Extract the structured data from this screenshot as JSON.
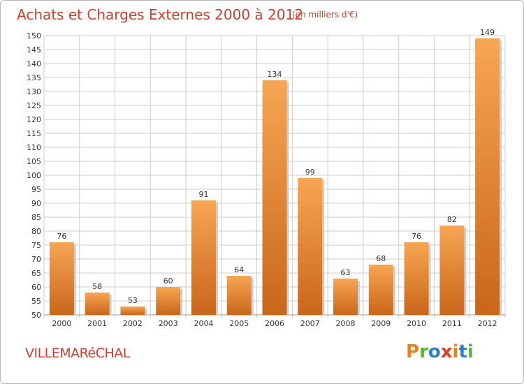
{
  "header": {
    "title": "Achats et Charges Externes 2000 à 2012",
    "unit": "(en milliers d'€)"
  },
  "footer": {
    "commune": "VILLEMARéCHAL",
    "logo_letters": [
      "P",
      "r",
      "o",
      "x",
      "i",
      "t",
      "i"
    ],
    "logo_colors": [
      "#e2841f",
      "#5ab43c",
      "#2e7fc7",
      "#e23b2a",
      "#e2841f",
      "#2e7fc7",
      "#5ab43c"
    ]
  },
  "colors": {
    "bar_light": "#f7a653",
    "bar_dark": "#c9661a",
    "grid": "#cccccc",
    "title": "#c8412f",
    "axis_text": "#333333"
  },
  "chart_data": {
    "type": "bar",
    "title": "Achats et Charges Externes 2000 à 2012",
    "subtitle": "(en milliers d'€)",
    "categories": [
      "2000",
      "2001",
      "2002",
      "2003",
      "2004",
      "2005",
      "2006",
      "2007",
      "2008",
      "2009",
      "2010",
      "2011",
      "2012"
    ],
    "values": [
      76,
      58,
      53,
      60,
      91,
      64,
      134,
      99,
      63,
      68,
      76,
      82,
      149
    ],
    "ylim": [
      50,
      150
    ],
    "ytick_step": 5,
    "grid": true
  }
}
